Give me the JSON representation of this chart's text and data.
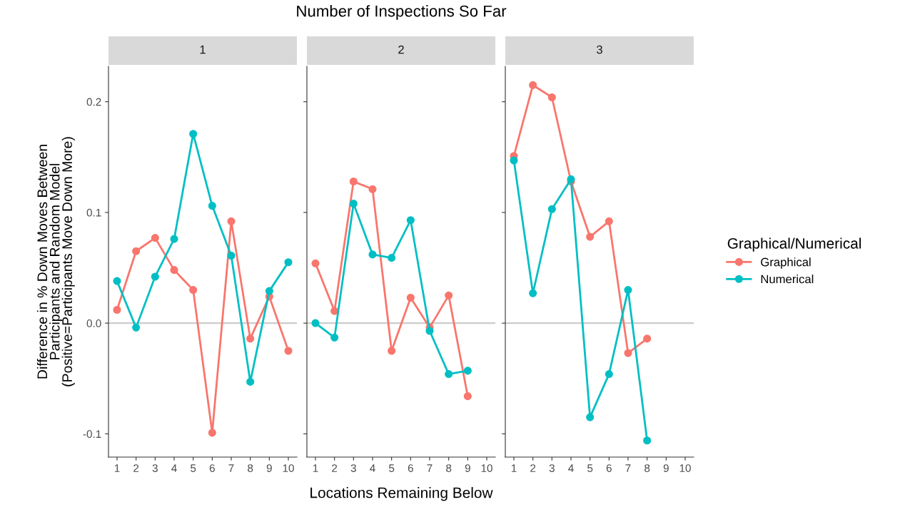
{
  "chart_data": [
    {
      "type": "line",
      "title": "1",
      "annotations": [
        "Number of Inspections So Far"
      ],
      "ylabel": "Difference in % Down Moves Between\nParticipants and Random Model\n(Positive=Participants Move Down More)",
      "x": [
        1,
        2,
        3,
        4,
        5,
        6,
        7,
        8,
        9,
        10
      ],
      "xlim": [
        0.55,
        10.45
      ],
      "xticks": [
        1,
        2,
        3,
        4,
        5,
        6,
        7,
        8,
        9,
        10
      ],
      "ylim": [
        -0.121,
        0.232
      ],
      "yticks": [
        {
          "value": -0.1,
          "label": "-0.1"
        },
        {
          "value": 0.0,
          "label": "0.0"
        },
        {
          "value": 0.1,
          "label": "0.1"
        },
        {
          "value": 0.2,
          "label": "0.2"
        }
      ],
      "marker": "circle",
      "grid": false,
      "ref_lines": [
        {
          "axis": "y",
          "value": 0,
          "color": "#cccccc"
        }
      ],
      "series": [
        {
          "color": "#f8766d",
          "values": [
            0.012,
            0.065,
            0.077,
            0.048,
            0.03,
            -0.099,
            0.092,
            -0.014,
            0.024,
            -0.025
          ]
        },
        {
          "color": "#00bfc4",
          "values": [
            0.038,
            -0.004,
            0.042,
            0.076,
            0.171,
            0.106,
            0.061,
            -0.053,
            0.029,
            0.055
          ]
        }
      ]
    },
    {
      "type": "line",
      "title": "2",
      "xlabel": "Locations Remaining Below",
      "x": [
        1,
        2,
        3,
        4,
        5,
        6,
        7,
        8,
        9
      ],
      "xlim": [
        0.55,
        10.45
      ],
      "xticks": [
        1,
        2,
        3,
        4,
        5,
        6,
        7,
        8,
        9,
        10
      ],
      "ylim": [
        -0.121,
        0.232
      ],
      "yticks": [
        {
          "value": -0.1,
          "label": null
        },
        {
          "value": 0.0,
          "label": null
        },
        {
          "value": 0.1,
          "label": null
        },
        {
          "value": 0.2,
          "label": null
        }
      ],
      "tick_labels": "x",
      "marker": "circle",
      "grid": false,
      "ref_lines": [
        {
          "axis": "y",
          "value": 0,
          "color": "#cccccc"
        }
      ],
      "series": [
        {
          "color": "#f8766d",
          "values": [
            0.054,
            0.011,
            0.128,
            0.121,
            -0.025,
            0.023,
            -0.004,
            0.025,
            -0.066
          ]
        },
        {
          "color": "#00bfc4",
          "values": [
            0.0,
            -0.013,
            0.108,
            0.062,
            0.059,
            0.093,
            -0.007,
            -0.046,
            -0.043
          ]
        }
      ]
    },
    {
      "type": "line",
      "title": "3",
      "legend_title": "Graphical/Numerical",
      "x": [
        1,
        2,
        3,
        4,
        5,
        6,
        7,
        8
      ],
      "xlim": [
        0.55,
        10.45
      ],
      "xticks": [
        1,
        2,
        3,
        4,
        5,
        6,
        7,
        8,
        9,
        10
      ],
      "ylim": [
        -0.121,
        0.232
      ],
      "yticks": [
        {
          "value": -0.1,
          "label": null
        },
        {
          "value": 0.0,
          "label": null
        },
        {
          "value": 0.1,
          "label": null
        },
        {
          "value": 0.2,
          "label": null
        }
      ],
      "tick_labels": "x",
      "marker": "circle",
      "grid": false,
      "legend": "right",
      "ref_lines": [
        {
          "axis": "y",
          "value": 0,
          "color": "#cccccc"
        }
      ],
      "series": [
        {
          "name": "Graphical",
          "color": "#f8766d",
          "values": [
            0.151,
            0.215,
            0.204,
            0.128,
            0.078,
            0.092,
            -0.027,
            -0.014
          ]
        },
        {
          "name": "Numerical",
          "color": "#00bfc4",
          "values": [
            0.147,
            0.027,
            0.103,
            0.13,
            -0.085,
            -0.046,
            0.03,
            -0.106
          ]
        }
      ]
    }
  ]
}
